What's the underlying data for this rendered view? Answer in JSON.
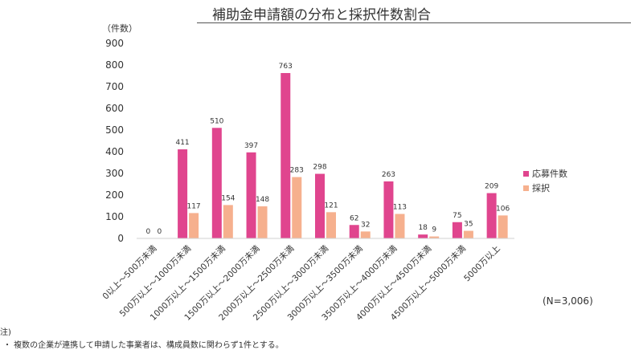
{
  "chart_data": {
    "type": "bar",
    "title": "補助金申請額の分布と採択件数割合",
    "ylabel": "（件数）",
    "ylim": [
      0,
      900
    ],
    "yticks": [
      "0",
      "100",
      "200",
      "300",
      "400",
      "500",
      "600",
      "700",
      "800",
      "900"
    ],
    "categories": [
      "0以上～500万未満",
      "500万以上～1000万未満",
      "1000万以上～1500万未満",
      "1500万以上～2000万未満",
      "2000万以上～2500万未満",
      "2500万以上～3000万未満",
      "3000万以上～3500万未満",
      "3500万以上～4000万未満",
      "4000万以上～4500万未満",
      "4500万以上～5000万未満",
      "5000万以上"
    ],
    "series": [
      {
        "name": "応募件数",
        "color": "#e0458e",
        "values": [
          0,
          411,
          510,
          397,
          763,
          298,
          62,
          263,
          18,
          75,
          209
        ]
      },
      {
        "name": "採択",
        "color": "#f6b08e",
        "values": [
          0,
          117,
          154,
          148,
          283,
          121,
          32,
          113,
          9,
          35,
          106
        ]
      }
    ],
    "legend_position": "right"
  },
  "n_label": "(N=3,006)",
  "note": {
    "heading": "注)",
    "lines": [
      "・  複数の企業が連携して申請した事業者は、構成員数に関わらず1件とする。"
    ]
  }
}
